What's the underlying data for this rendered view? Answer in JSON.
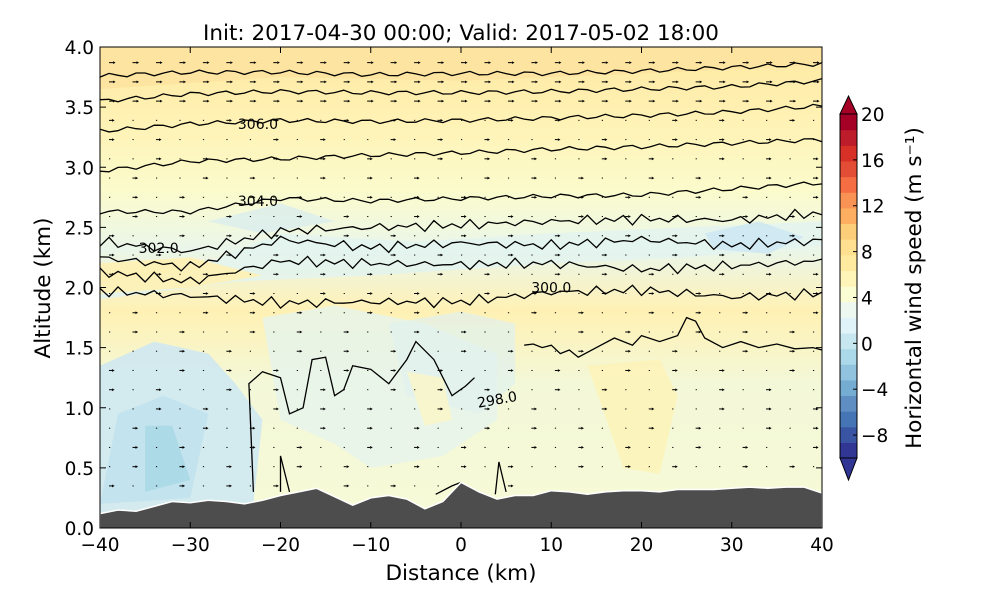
{
  "chart_data": {
    "type": "contourf-cross-section",
    "title": "Init: 2017-04-30 00:00; Valid: 2017-05-02 18:00",
    "xlabel": "Distance (km)",
    "ylabel": "Altitude (km)",
    "xlim": [
      -40,
      40
    ],
    "ylim": [
      0.0,
      4.0
    ],
    "xticks": [
      "−40",
      "−30",
      "−20",
      "−10",
      "0",
      "10",
      "20",
      "30",
      "40"
    ],
    "yticks": [
      "0.0",
      "0.5",
      "1.0",
      "1.5",
      "2.0",
      "2.5",
      "3.0",
      "3.5",
      "4.0"
    ],
    "colorbar": {
      "label": "Horizontal wind speed (m s⁻¹)",
      "range": [
        -10,
        20
      ],
      "ticks": [
        "−8",
        "−4",
        "0",
        "4",
        "8",
        "12",
        "16",
        "20"
      ],
      "colors": [
        "#313695",
        "#3a54a4",
        "#4575b4",
        "#5f8fc2",
        "#74add1",
        "#91c3de",
        "#abd9e9",
        "#c6e6f0",
        "#e0f3f8",
        "#edf8f0",
        "#fbfdd2",
        "#fff5b8",
        "#ffeaa0",
        "#fee090",
        "#fdce7a",
        "#fdae61",
        "#f99355",
        "#f46d43",
        "#e44d35",
        "#d73027",
        "#bd1d2a",
        "#a50026"
      ]
    },
    "contour_labels": [
      {
        "value": "306.0",
        "x_km": -22.5,
        "z_km": 3.36
      },
      {
        "value": "304.0",
        "x_km": -22.5,
        "z_km": 2.72
      },
      {
        "value": "302.0",
        "x_km": -33.5,
        "z_km": 2.33
      },
      {
        "value": "300.0",
        "x_km": 10.0,
        "z_km": 2.0
      },
      {
        "value": "298.0",
        "x_km": 4.0,
        "z_km": 1.07
      }
    ],
    "theta_isentropes": [
      {
        "x": [
          -40,
          -30,
          -20,
          -10,
          0,
          10,
          20,
          30,
          40
        ],
        "z": [
          3.76,
          3.79,
          3.79,
          3.77,
          3.78,
          3.78,
          3.8,
          3.83,
          3.86
        ]
      },
      {
        "x": [
          -40,
          -30,
          -20,
          -10,
          0,
          10,
          20,
          30,
          40
        ],
        "z": [
          3.55,
          3.61,
          3.63,
          3.62,
          3.62,
          3.63,
          3.65,
          3.67,
          3.72
        ]
      },
      {
        "x": [
          -40,
          -30,
          -20,
          -10,
          0,
          10,
          20,
          30,
          40
        ],
        "z": [
          3.3,
          3.36,
          3.39,
          3.38,
          3.39,
          3.41,
          3.43,
          3.46,
          3.51
        ]
      },
      {
        "x": [
          -40,
          -30,
          -20,
          -10,
          0,
          10,
          20,
          30,
          40
        ],
        "z": [
          2.97,
          3.05,
          3.07,
          3.1,
          3.12,
          3.15,
          3.17,
          3.2,
          3.23
        ]
      },
      {
        "x": [
          -40,
          -30,
          -20,
          -10,
          0,
          10,
          20,
          30,
          40
        ],
        "z": [
          2.63,
          2.63,
          2.74,
          2.72,
          2.74,
          2.76,
          2.77,
          2.82,
          2.87
        ]
      },
      {
        "x": [
          -40,
          -30,
          -20,
          -10,
          0,
          10,
          20,
          30,
          40
        ],
        "z": [
          2.38,
          2.3,
          2.47,
          2.5,
          2.52,
          2.55,
          2.57,
          2.56,
          2.62
        ]
      },
      {
        "x": [
          -40,
          -30,
          -20,
          -10,
          0,
          10,
          20,
          30,
          40
        ],
        "z": [
          2.25,
          2.17,
          2.4,
          2.33,
          2.37,
          2.35,
          2.4,
          2.35,
          2.39
        ]
      },
      {
        "x": [
          -40,
          -30,
          -20,
          -10,
          0,
          10,
          20,
          30,
          40
        ],
        "z": [
          2.13,
          2.05,
          2.22,
          2.2,
          2.19,
          2.2,
          2.15,
          2.18,
          2.22
        ]
      },
      {
        "x": [
          -40,
          -30,
          -20,
          -10,
          0,
          10,
          20,
          30,
          40
        ],
        "z": [
          1.97,
          1.93,
          1.87,
          1.88,
          1.88,
          1.96,
          1.98,
          1.92,
          1.95
        ]
      }
    ],
    "terrain": {
      "x": [
        -40,
        -38,
        -36,
        -34,
        -32,
        -30,
        -28,
        -26,
        -24,
        -22,
        -20,
        -18,
        -16,
        -14,
        -12,
        -10,
        -8,
        -6,
        -4,
        -2,
        0,
        2,
        4,
        6,
        8,
        10,
        12,
        14,
        16,
        18,
        20,
        22,
        24,
        26,
        28,
        30,
        32,
        34,
        36,
        38,
        40
      ],
      "z": [
        0.12,
        0.15,
        0.14,
        0.18,
        0.22,
        0.21,
        0.23,
        0.22,
        0.2,
        0.23,
        0.27,
        0.3,
        0.33,
        0.26,
        0.19,
        0.25,
        0.27,
        0.24,
        0.16,
        0.22,
        0.38,
        0.3,
        0.24,
        0.27,
        0.27,
        0.31,
        0.3,
        0.28,
        0.3,
        0.31,
        0.31,
        0.3,
        0.32,
        0.32,
        0.32,
        0.33,
        0.34,
        0.33,
        0.34,
        0.34,
        0.29
      ]
    }
  }
}
